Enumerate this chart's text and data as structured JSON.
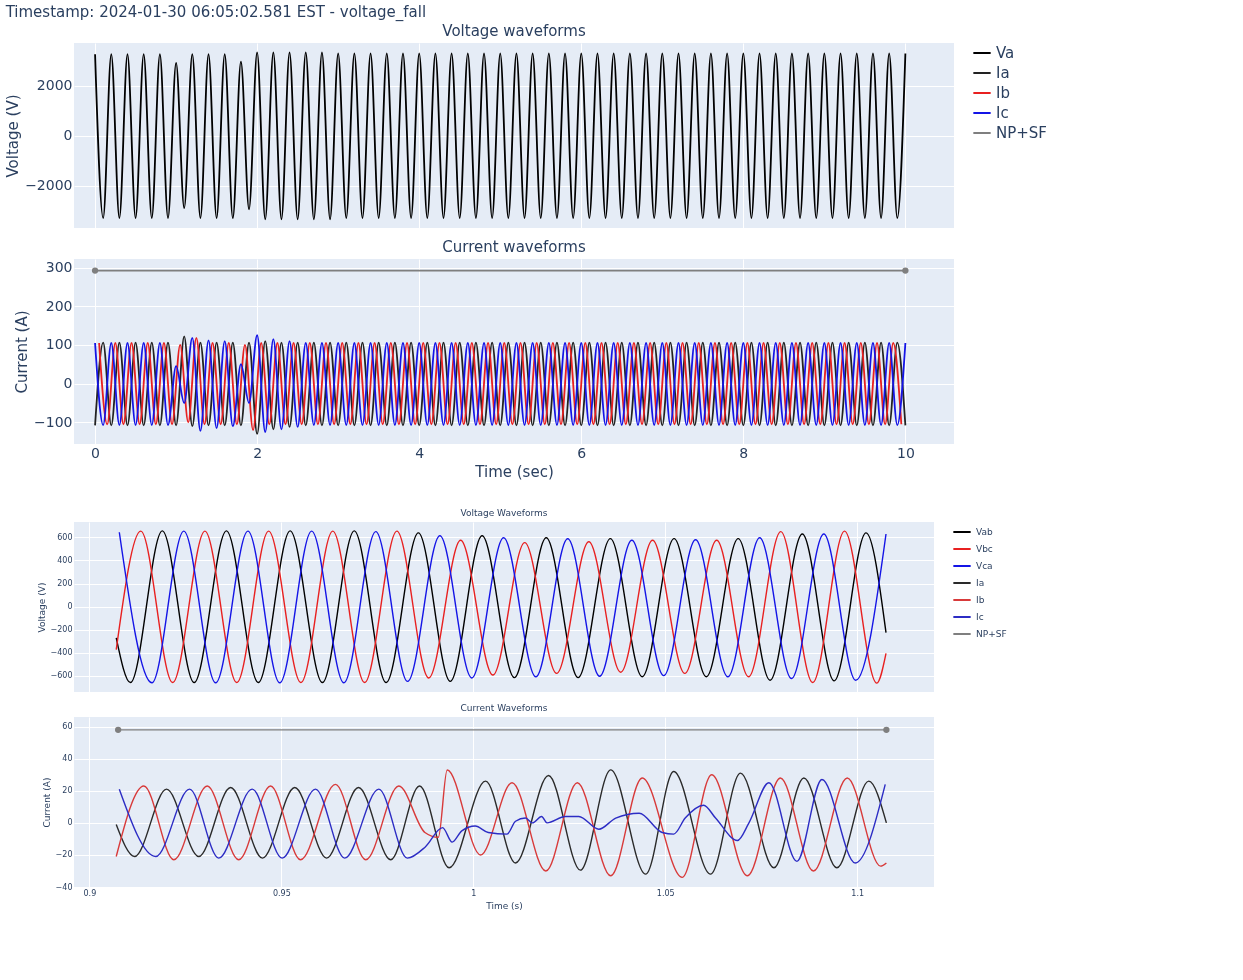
{
  "chart_data": [
    {
      "type": "line",
      "title": "Voltage waveforms",
      "ylabel": "Voltage (V)",
      "annotations": [
        "Timestamp: 2024-01-30 06:05:02.581 EST - voltage_fall"
      ],
      "legend": "top right",
      "grid": true,
      "tick_labels": "y",
      "xlim": [
        -0.26,
        10.6
      ],
      "xticks": [
        0,
        2,
        4,
        6,
        8,
        10
      ],
      "ylim": [
        -3700,
        3700
      ],
      "yticks": [
        -2000,
        0,
        2000
      ],
      "x": [
        0,
        0.1,
        0.2,
        0.3,
        0.4,
        0.5,
        0.6,
        0.7,
        0.8,
        0.9,
        1,
        1.1,
        1.2,
        1.3,
        1.4,
        1.5,
        1.6,
        1.7,
        1.8,
        1.9,
        2,
        2.1,
        2.2,
        2.3,
        2.4,
        2.5,
        2.6,
        2.7,
        2.8,
        2.9,
        3,
        3.1,
        3.2,
        3.3,
        3.4,
        3.5,
        3.6,
        3.7,
        3.8,
        3.9,
        4,
        4.1,
        4.2,
        4.3,
        4.4,
        4.5,
        4.6,
        4.7,
        4.8,
        4.9,
        5,
        5.1,
        5.2,
        5.3,
        5.4,
        5.5,
        5.6,
        5.7,
        5.8,
        5.9,
        6,
        6.1,
        6.2,
        6.3,
        6.4,
        6.5,
        6.6,
        6.7,
        6.8,
        6.9,
        7,
        7.1,
        7.2,
        7.3,
        7.4,
        7.5,
        7.6,
        7.7,
        7.8,
        7.9,
        8,
        8.1,
        8.2,
        8.3,
        8.4,
        8.5,
        8.6,
        8.7,
        8.8,
        8.9,
        9,
        9.1,
        9.2,
        9.3,
        9.4,
        9.5,
        9.6,
        9.7,
        9.8,
        9.9,
        10
      ],
      "series": [
        {
          "name": "Va",
          "color": "#000000",
          "values": [
            3250,
            -3300,
            3250,
            -3300,
            3250,
            -3300,
            3250,
            -3300,
            3250,
            -3300,
            2900,
            -2900,
            3250,
            -3300,
            3250,
            -3300,
            3250,
            -3300,
            2950,
            -2950,
            3320,
            -3350,
            3320,
            -3350,
            3320,
            -3350,
            3320,
            -3350,
            3320,
            -3350,
            3280,
            -3300,
            3280,
            -3300,
            3280,
            -3300,
            3280,
            -3300,
            3280,
            -3300,
            3280,
            -3300,
            3280,
            -3300,
            3280,
            -3300,
            3280,
            -3300,
            3280,
            -3300,
            3280,
            -3300,
            3280,
            -3300,
            3280,
            -3300,
            3280,
            -3300,
            3280,
            -3300,
            3280,
            -3300,
            3280,
            -3300,
            3280,
            -3300,
            3280,
            -3300,
            3280,
            -3300,
            3280,
            -3300,
            3280,
            -3300,
            3280,
            -3300,
            3280,
            -3300,
            3280,
            -3300,
            3280,
            -3300,
            3280,
            -3300,
            3280,
            -3300,
            3280,
            -3300,
            3280,
            -3300,
            3280,
            -3300,
            3280,
            -3300,
            3280,
            -3300,
            3280,
            -3300,
            3280,
            -3300,
            3280
          ]
        }
      ]
    },
    {
      "type": "line",
      "title": "Current waveforms",
      "xlabel": "Time (sec)",
      "ylabel": "Current (A)",
      "legend": "top right",
      "grid": true,
      "xlim": [
        -0.26,
        10.6
      ],
      "xticks": [
        0,
        2,
        4,
        6,
        8,
        10
      ],
      "ylim": [
        -156,
        322
      ],
      "yticks": [
        -100,
        0,
        100,
        200,
        300
      ],
      "x": [
        0,
        0.1,
        0.2,
        0.3,
        0.4,
        0.5,
        0.6,
        0.7,
        0.8,
        0.9,
        1,
        1.1,
        1.2,
        1.3,
        1.4,
        1.5,
        1.6,
        1.7,
        1.8,
        1.9,
        2,
        2.1,
        2.2,
        2.3,
        2.4,
        2.5,
        2.6,
        2.7,
        2.8,
        2.9,
        3,
        3.1,
        3.2,
        3.3,
        3.4,
        3.5,
        3.6,
        3.7,
        3.8,
        3.9,
        4,
        4.1,
        4.2,
        4.3,
        4.4,
        4.5,
        4.6,
        4.7,
        4.8,
        4.9,
        5,
        5.1,
        5.2,
        5.3,
        5.4,
        5.5,
        5.6,
        5.7,
        5.8,
        5.9,
        6,
        6.1,
        6.2,
        6.3,
        6.4,
        6.5,
        6.6,
        6.7,
        6.8,
        6.9,
        7,
        7.1,
        7.2,
        7.3,
        7.4,
        7.5,
        7.6,
        7.7,
        7.8,
        7.9,
        8,
        8.1,
        8.2,
        8.3,
        8.4,
        8.5,
        8.6,
        8.7,
        8.8,
        8.9,
        9,
        9.1,
        9.2,
        9.3,
        9.4,
        9.5,
        9.6,
        9.7,
        9.8,
        9.9,
        10
      ],
      "series": [
        {
          "name": "Ia",
          "color": "#222222",
          "values": [
            -108,
            106,
            -108,
            106,
            -108,
            106,
            -108,
            106,
            -108,
            106,
            -108,
            122,
            -110,
            106,
            -108,
            106,
            -108,
            106,
            -108,
            106,
            -130,
            110,
            -118,
            106,
            -112,
            106,
            -108,
            106,
            -108,
            106,
            -108,
            106,
            -108,
            106,
            -108,
            106,
            -108,
            106,
            -108,
            106,
            -108,
            106,
            -108,
            106,
            -108,
            106,
            -108,
            106,
            -108,
            106,
            -108,
            106,
            -108,
            106,
            -108,
            106,
            -108,
            106,
            -108,
            106,
            -108,
            106,
            -108,
            106,
            -108,
            106,
            -108,
            106,
            -108,
            106,
            -108,
            106,
            -108,
            106,
            -108,
            106,
            -108,
            106,
            -108,
            106,
            -108,
            106,
            -108,
            106,
            -108,
            106,
            -108,
            106,
            -108,
            106,
            -108,
            106,
            -108,
            106,
            -108,
            106,
            -108,
            106,
            -108,
            106,
            -108
          ]
        },
        {
          "name": "Ib",
          "color": "#e82020",
          "x": [
            0.05,
            0.15,
            0.25,
            0.35,
            0.45,
            0.55,
            0.65,
            0.75,
            0.85,
            0.95,
            1.05,
            1.15,
            1.25,
            1.35,
            1.45,
            1.55,
            1.65,
            1.75,
            1.85,
            1.95,
            2.05,
            2.15,
            2.25,
            2.35,
            2.45,
            2.55,
            2.65,
            2.75,
            2.85,
            2.95,
            3.05,
            3.15,
            3.25,
            3.35,
            3.45,
            3.55,
            3.65,
            3.75,
            3.85,
            3.95,
            4.05,
            4.15,
            4.25,
            4.35,
            4.45,
            4.55,
            4.65,
            4.75,
            4.85,
            4.95,
            5.05,
            5.15,
            5.25,
            5.35,
            5.45,
            5.55,
            5.65,
            5.75,
            5.85,
            5.95,
            6.05,
            6.15,
            6.25,
            6.35,
            6.45,
            6.55,
            6.65,
            6.75,
            6.85,
            6.95,
            7.05,
            7.15,
            7.25,
            7.35,
            7.45,
            7.55,
            7.65,
            7.75,
            7.85,
            7.95,
            8.05,
            8.15,
            8.25,
            8.35,
            8.45,
            8.55,
            8.65,
            8.75,
            8.85,
            8.95,
            9.05,
            9.15,
            9.25,
            9.35,
            9.45,
            9.55,
            9.65,
            9.75,
            9.85,
            9.95
          ],
          "values": [
            105,
            -105,
            105,
            -105,
            105,
            -105,
            105,
            -105,
            105,
            -105,
            100,
            -100,
            118,
            -105,
            105,
            -105,
            105,
            -105,
            100,
            -120,
            105,
            -105,
            105,
            -105,
            105,
            -105,
            105,
            -105,
            105,
            -105,
            105,
            -105,
            105,
            -105,
            105,
            -105,
            105,
            -105,
            105,
            -105,
            105,
            -105,
            105,
            -105,
            105,
            -105,
            105,
            -105,
            105,
            -105,
            105,
            -105,
            105,
            -105,
            105,
            -105,
            105,
            -105,
            105,
            -105,
            105,
            -105,
            105,
            -105,
            105,
            -105,
            105,
            -105,
            105,
            -105,
            105,
            -105,
            105,
            -105,
            105,
            -105,
            105,
            -105,
            105,
            -105,
            105,
            -105,
            105,
            -105,
            105,
            -105,
            105,
            -105,
            105,
            -105,
            105,
            -105,
            105,
            -105,
            105,
            -105,
            105,
            -105,
            105,
            -105
          ]
        },
        {
          "name": "Ic",
          "color": "#1414e6",
          "values": [
            105,
            -107,
            105,
            -107,
            105,
            -107,
            105,
            -107,
            105,
            -107,
            45,
            -50,
            118,
            -122,
            112,
            -115,
            110,
            -110,
            50,
            -50,
            125,
            -125,
            115,
            -118,
            110,
            -112,
            105,
            -107,
            105,
            -107,
            105,
            -107,
            105,
            -107,
            105,
            -107,
            105,
            -107,
            105,
            -107,
            105,
            -107,
            105,
            -107,
            105,
            -107,
            105,
            -107,
            105,
            -107,
            105,
            -107,
            105,
            -107,
            105,
            -107,
            105,
            -107,
            105,
            -107,
            105,
            -107,
            105,
            -107,
            105,
            -107,
            105,
            -107,
            105,
            -107,
            105,
            -107,
            105,
            -107,
            105,
            -107,
            105,
            -107,
            105,
            -107,
            105,
            -107,
            105,
            -107,
            105,
            -107,
            105,
            -107,
            105,
            -107,
            105,
            -107,
            105,
            -107,
            105,
            -107,
            105,
            -107,
            105,
            -107,
            105
          ]
        },
        {
          "name": "NP+SF",
          "color": "#7f7f7f",
          "marker": "circle",
          "x": [
            0,
            10
          ],
          "values": [
            292,
            292
          ]
        }
      ]
    },
    {
      "type": "line",
      "title": "Voltage Waveforms",
      "ylabel": "Voltage (V)",
      "legend": "top right",
      "grid": true,
      "tick_labels": "y",
      "xlim": [
        0.896,
        1.12
      ],
      "xticks": [
        0.9,
        0.95,
        1,
        1.05,
        1.1
      ],
      "ylim": [
        -742,
        734
      ],
      "yticks": [
        -600,
        -400,
        -200,
        0,
        200,
        400,
        600
      ],
      "series": [
        {
          "name": "Vab",
          "color": "#000000",
          "x": [
            0.907,
            0.9107,
            0.919,
            0.9273,
            0.9357,
            0.944,
            0.9523,
            0.9607,
            0.969,
            0.9773,
            0.9857,
            0.994,
            1.0023,
            1.0107,
            1.019,
            1.0273,
            1.0357,
            1.044,
            1.0523,
            1.0607,
            1.069,
            1.0773,
            1.0857,
            1.094,
            1.1023,
            1.1075
          ],
          "values": [
            -272,
            -660,
            657,
            -660,
            657,
            -660,
            657,
            -660,
            657,
            -660,
            640,
            -650,
            615,
            -617,
            597,
            -617,
            590,
            -610,
            590,
            -610,
            590,
            -640,
            630,
            -645,
            640,
            -227
          ]
        },
        {
          "name": "Vbc",
          "color": "#e82020",
          "x": [
            0.907,
            0.9134,
            0.9217,
            0.9301,
            0.9384,
            0.9467,
            0.9551,
            0.9634,
            0.9717,
            0.9801,
            0.9884,
            0.9967,
            1.0051,
            1.0134,
            1.0217,
            1.0301,
            1.0384,
            1.0467,
            1.0551,
            1.0634,
            1.0717,
            1.0801,
            1.0884,
            1.0967,
            1.1051,
            1.1075
          ],
          "values": [
            -374,
            655,
            -660,
            655,
            -660,
            655,
            -660,
            655,
            -660,
            655,
            -620,
            575,
            -595,
            555,
            -580,
            562,
            -570,
            575,
            -580,
            575,
            -610,
            650,
            -660,
            655,
            -665,
            -407
          ]
        },
        {
          "name": "Vca",
          "color": "#1414e6",
          "x": [
            0.9078,
            0.9163,
            0.9246,
            0.9329,
            0.9413,
            0.9496,
            0.9579,
            0.9663,
            0.9746,
            0.9829,
            0.9913,
            0.9996,
            1.0079,
            1.0163,
            1.0246,
            1.0329,
            1.0413,
            1.0496,
            1.0579,
            1.0663,
            1.0746,
            1.0829,
            1.0913,
            1.0996,
            1.1075
          ],
          "values": [
            645,
            -662,
            655,
            -662,
            655,
            -662,
            655,
            -662,
            650,
            -650,
            615,
            -620,
            597,
            -610,
            588,
            -605,
            575,
            -600,
            580,
            -610,
            597,
            -625,
            630,
            -640,
            630
          ]
        }
      ]
    },
    {
      "type": "line",
      "title": "Current Waveforms",
      "xlabel": "Time (s)",
      "ylabel": "Current (A)",
      "legend": "top right",
      "grid": true,
      "xlim": [
        0.896,
        1.12
      ],
      "xticks": [
        0.9,
        0.95,
        1,
        1.05,
        1.1
      ],
      "ylim": [
        -40,
        66
      ],
      "yticks": [
        -40,
        -20,
        0,
        20,
        40,
        60
      ],
      "series": [
        {
          "name": "Ia",
          "color": "#2a2a2a",
          "x": [
            0.907,
            0.9118,
            0.9201,
            0.9285,
            0.9368,
            0.9451,
            0.9535,
            0.9618,
            0.9701,
            0.9785,
            0.986,
            0.9937,
            1.0032,
            1.011,
            1.0196,
            1.0279,
            1.0358,
            1.0449,
            1.0522,
            1.0618,
            1.0696,
            1.0783,
            1.0861,
            1.0947,
            1.103,
            1.1076
          ],
          "values": [
            -1,
            -21,
            21,
            -21,
            22,
            -22,
            22,
            -22,
            22,
            -23,
            23,
            -28,
            26,
            -25,
            29.5,
            -29.5,
            33,
            -32,
            32,
            -32,
            31,
            -28,
            28,
            -28,
            26,
            0
          ]
        },
        {
          "name": "Ib",
          "color": "#d83a3a",
          "x": [
            0.907,
            0.9142,
            0.922,
            0.9307,
            0.9389,
            0.9472,
            0.955,
            0.9641,
            0.972,
            0.9806,
            0.9874,
            0.9909,
            0.9932,
            1.0019,
            1.0101,
            1.0189,
            1.0271,
            1.0358,
            1.044,
            1.0544,
            1.0621,
            1.0714,
            1.08,
            1.0886,
            1.0974,
            1.1061,
            1.1076
          ],
          "values": [
            -21,
            23,
            -23,
            23,
            -23,
            23,
            -23,
            24,
            -23,
            23,
            -6,
            -9,
            33,
            -20,
            25,
            -30,
            25,
            -33,
            28,
            -34,
            30,
            -33,
            28,
            -30,
            28,
            -27,
            -25
          ]
        },
        {
          "name": "Ic",
          "color": "#2c2cc4",
          "x": [
            0.9078,
            0.9173,
            0.9261,
            0.9337,
            0.9424,
            0.9502,
            0.9589,
            0.9665,
            0.9754,
            0.9828,
            0.9875,
            0.992,
            0.9945,
            0.997,
            1.0005,
            1.0039,
            1.0088,
            1.011,
            1.0136,
            1.0154,
            1.0178,
            1.0192,
            1.024,
            1.0275,
            1.0327,
            1.0371,
            1.0432,
            1.0492,
            1.0522,
            1.0552,
            1.06,
            1.0631,
            1.0688,
            1.0718,
            1.077,
            1.0843,
            1.0908,
            1.0995,
            1.1073
          ],
          "values": [
            21,
            -21,
            21,
            -22,
            21,
            -22,
            21,
            -22,
            21,
            -22,
            -15,
            -3,
            -12,
            -5,
            -2,
            -6,
            -7,
            1,
            3,
            0,
            4,
            0,
            4,
            4,
            -4,
            3,
            6,
            -6,
            -7,
            3,
            11,
            3,
            -11,
            0,
            25,
            -24,
            27,
            -25,
            24
          ]
        },
        {
          "name": "NP+SF",
          "color": "#7f7f7f",
          "marker": "circle",
          "x": [
            0.9075,
            1.1076
          ],
          "values": [
            58,
            58
          ]
        }
      ]
    }
  ]
}
